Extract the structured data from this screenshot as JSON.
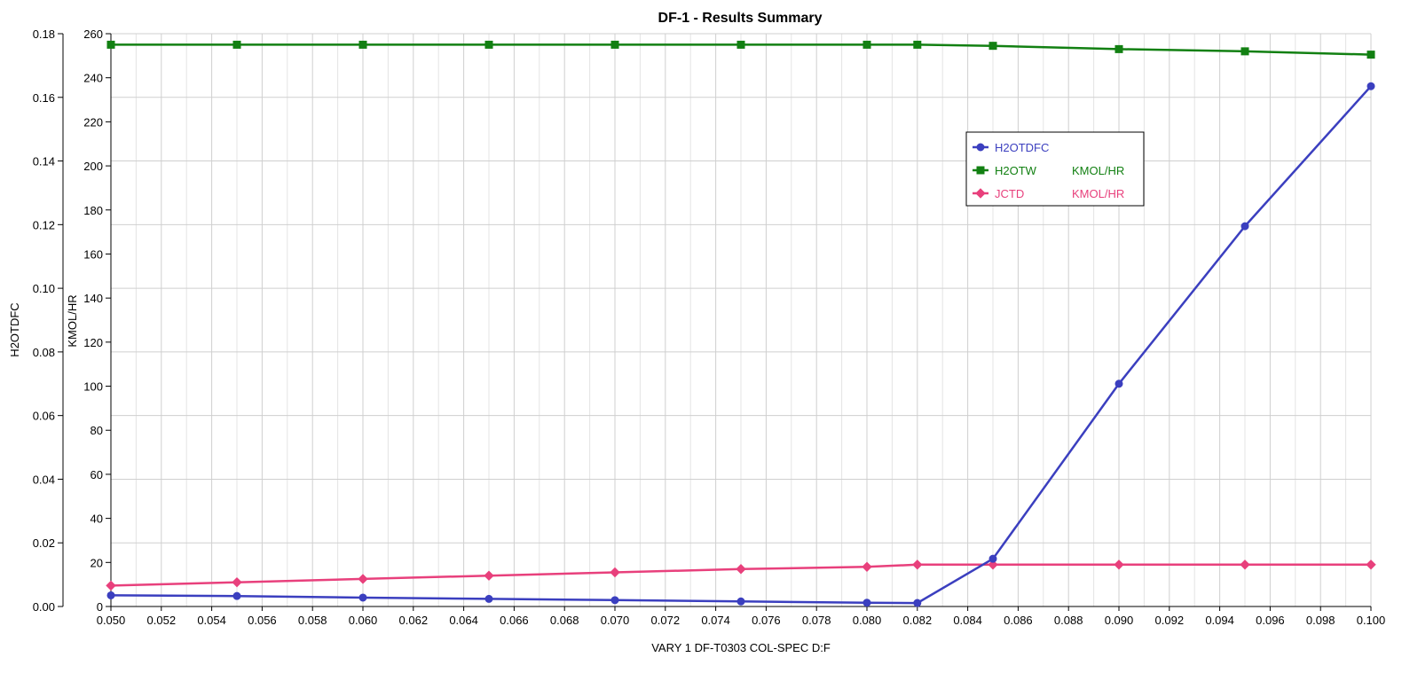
{
  "chart_data": {
    "type": "line",
    "title": "DF-1 - Results Summary",
    "xlabel": "VARY   1 DF-T0303 COL-SPEC D:F",
    "ylabel_left": "H2OTDFC",
    "ylabel_right": "KMOL/HR",
    "xlim": [
      0.05,
      0.1
    ],
    "ylim_left": [
      0,
      0.18
    ],
    "ylim_right": [
      0,
      260
    ],
    "grid": true,
    "legend_position": "upper-right",
    "x_ticks": [
      "0.050",
      "0.052",
      "0.054",
      "0.056",
      "0.058",
      "0.060",
      "0.062",
      "0.064",
      "0.066",
      "0.068",
      "0.070",
      "0.072",
      "0.074",
      "0.076",
      "0.078",
      "0.080",
      "0.082",
      "0.084",
      "0.086",
      "0.088",
      "0.090",
      "0.092",
      "0.094",
      "0.096",
      "0.098",
      "0.100"
    ],
    "y_left_ticks": [
      "0.00",
      "0.02",
      "0.04",
      "0.06",
      "0.08",
      "0.10",
      "0.12",
      "0.14",
      "0.16",
      "0.18"
    ],
    "y_right_ticks": [
      "0",
      "20",
      "40",
      "60",
      "80",
      "100",
      "120",
      "140",
      "160",
      "180",
      "200",
      "220",
      "240",
      "260"
    ],
    "x": [
      0.05,
      0.055,
      0.06,
      0.065,
      0.07,
      0.075,
      0.08,
      0.082,
      0.085,
      0.09,
      0.095,
      0.1
    ],
    "series": [
      {
        "name": "H2OTDFC",
        "unit": "",
        "axis": "left",
        "color": "#3b3fbf",
        "marker": "circle",
        "values": [
          0.0035,
          0.0033,
          0.0028,
          0.0024,
          0.002,
          0.0016,
          0.0012,
          0.0011,
          0.015,
          0.07,
          0.1195,
          0.1635
        ]
      },
      {
        "name": "H2OTW",
        "unit": "KMOL/HR",
        "axis": "right",
        "color": "#128012",
        "marker": "square",
        "values": [
          255,
          255,
          255,
          255,
          255,
          255,
          255,
          255,
          254.5,
          253,
          252,
          250.5
        ]
      },
      {
        "name": "JCTD",
        "unit": "KMOL/HR",
        "axis": "right",
        "color": "#e8407c",
        "marker": "diamond",
        "values": [
          9.5,
          11,
          12.5,
          14,
          15.5,
          17,
          18,
          19,
          19,
          19,
          19,
          19
        ]
      }
    ]
  }
}
